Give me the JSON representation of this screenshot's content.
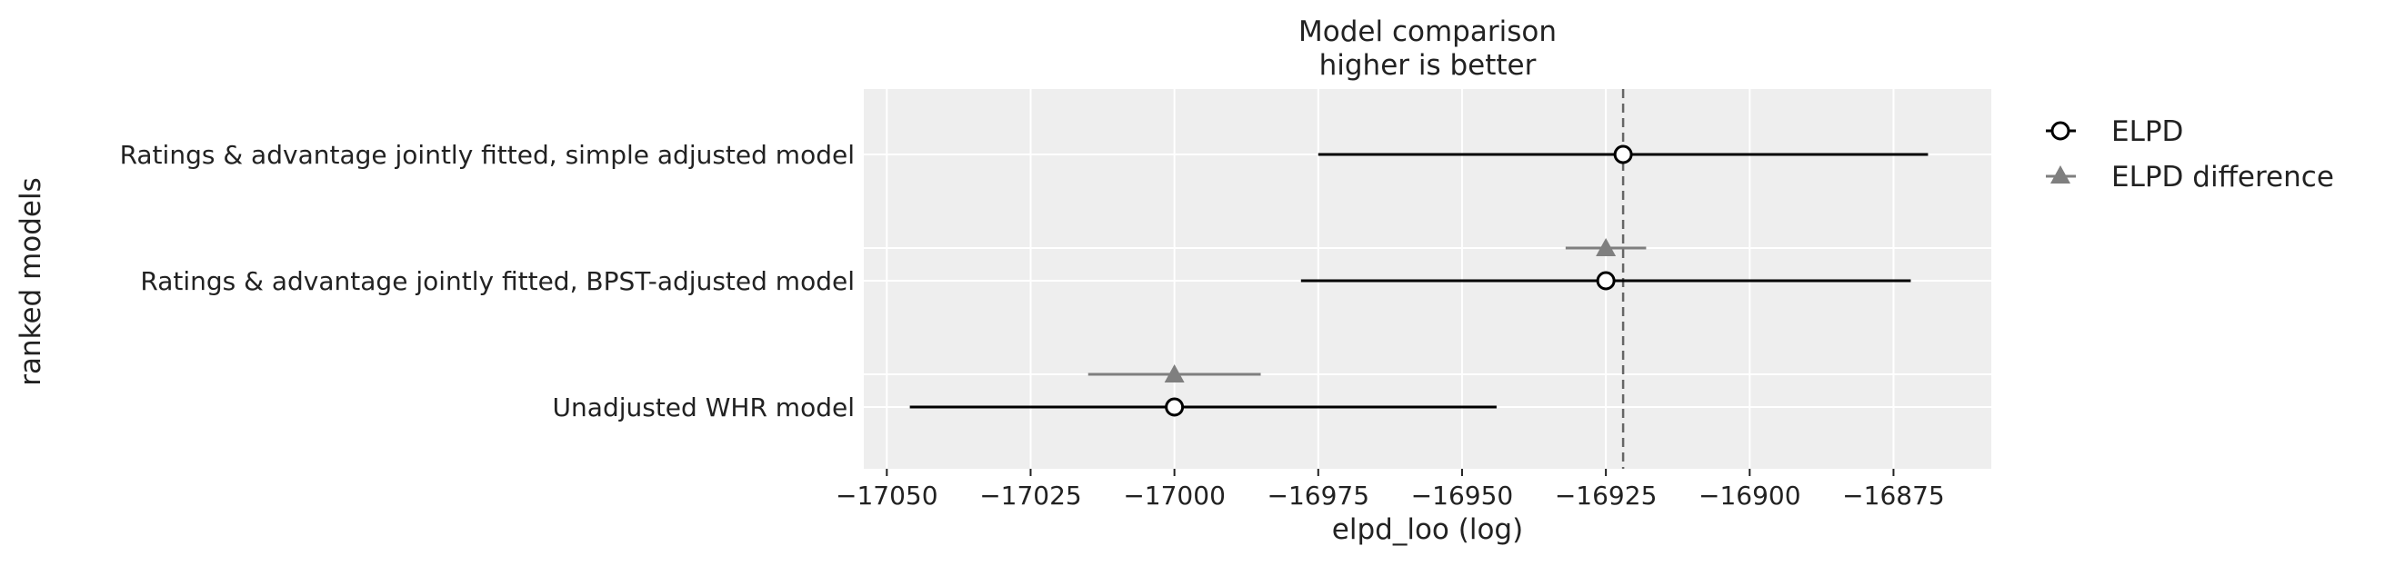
{
  "chart_data": {
    "type": "scatter",
    "title": "Model comparison",
    "subtitle": "higher is better",
    "xlabel": "elpd_loo (log)",
    "ylabel": "ranked models",
    "xlim": [
      -17054,
      -16858
    ],
    "xticks": [
      -17050,
      -17025,
      -17000,
      -16975,
      -16950,
      -16925,
      -16900,
      -16875
    ],
    "xtick_labels": [
      "−17050",
      "−17025",
      "−17000",
      "−16975",
      "−16950",
      "−16925",
      "−16900",
      "−16875"
    ],
    "grid": true,
    "legend_position": "outside-right",
    "reference_line": -16922,
    "colors": {
      "elpd": "#000000",
      "elpd_difference": "#7f7f7f",
      "reference": "#666666",
      "plot_background": "#eeeeee",
      "grid": "#ffffff"
    },
    "categories": [
      "Ratings & advantage jointly fitted, simple adjusted model",
      "Ratings & advantage jointly fitted, BPST-adjusted model",
      "Unadjusted WHR model"
    ],
    "series": [
      {
        "name": "ELPD",
        "marker": "open-circle",
        "values": [
          -16922,
          -16925,
          -17000
        ],
        "lower": [
          -16975,
          -16978,
          -17046
        ],
        "upper": [
          -16869,
          -16872,
          -16944
        ]
      },
      {
        "name": "ELPD difference",
        "marker": "triangle",
        "values": [
          null,
          -16925,
          -17000
        ],
        "lower": [
          null,
          -16932,
          -17015
        ],
        "upper": [
          null,
          -16918,
          -16985
        ]
      }
    ]
  }
}
